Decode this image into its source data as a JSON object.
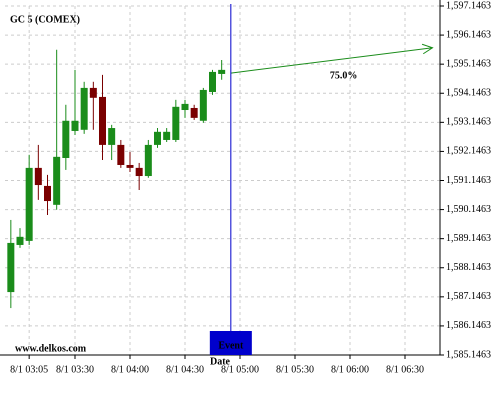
{
  "chart_data": {
    "type": "candlestick",
    "title": "GC 5 (COMEX)",
    "x_label": "Date",
    "watermark": "www.delkos.com",
    "x": [
      "8/1 02:55",
      "8/1 03:00",
      "8/1 03:05",
      "8/1 03:10",
      "8/1 03:15",
      "8/1 03:20",
      "8/1 03:25",
      "8/1 03:30",
      "8/1 03:35",
      "8/1 03:40",
      "8/1 03:45",
      "8/1 03:50",
      "8/1 03:55",
      "8/1 04:00",
      "8/1 04:05",
      "8/1 04:10",
      "8/1 04:15",
      "8/1 04:20",
      "8/1 04:25",
      "8/1 04:30",
      "8/1 04:35",
      "8/1 04:40",
      "8/1 04:45",
      "8/1 04:50"
    ],
    "open": [
      1587.31,
      1588.93,
      1589.07,
      1591.58,
      1590.96,
      1590.31,
      1591.92,
      1592.85,
      1592.89,
      1594.33,
      1594.02,
      1592.37,
      1592.37,
      1591.68,
      1591.58,
      1591.3,
      1592.37,
      1592.54,
      1592.54,
      1593.57,
      1593.64,
      1593.2,
      1594.19,
      1594.81
    ],
    "high": [
      1589.79,
      1589.51,
      1592.03,
      1592.37,
      1591.34,
      1595.64,
      1593.75,
      1594.95,
      1594.54,
      1594.54,
      1594.78,
      1593.06,
      1592.54,
      1592.13,
      1591.75,
      1592.54,
      1592.95,
      1592.95,
      1593.92,
      1593.92,
      1593.75,
      1594.33,
      1594.95,
      1595.29
    ],
    "low": [
      1586.76,
      1588.83,
      1588.93,
      1590.48,
      1589.96,
      1590.14,
      1591.51,
      1592.71,
      1592.75,
      1592.89,
      1591.85,
      1591.85,
      1591.58,
      1591.44,
      1590.82,
      1591.24,
      1592.27,
      1592.47,
      1592.47,
      1593.3,
      1593.23,
      1593.13,
      1594.09,
      1594.61
    ],
    "close": [
      1589.0,
      1589.21,
      1591.58,
      1590.99,
      1590.44,
      1591.96,
      1593.2,
      1593.2,
      1594.33,
      1593.99,
      1592.37,
      1592.95,
      1591.68,
      1591.58,
      1591.3,
      1592.37,
      1592.82,
      1592.82,
      1593.68,
      1593.78,
      1593.3,
      1594.26,
      1594.88,
      1594.95
    ],
    "up_color": "#1a8c1a",
    "down_color": "#7a0000",
    "ylim": [
      1585.1463,
      1597.1463
    ],
    "yticks": [
      {
        "value": 1585.1463,
        "label": "1,585.1463"
      },
      {
        "value": 1586.1463,
        "label": "1,586.1463"
      },
      {
        "value": 1587.1463,
        "label": "1,587.1463"
      },
      {
        "value": 1588.1463,
        "label": "1,588.1463"
      },
      {
        "value": 1589.1463,
        "label": "1,589.1463"
      },
      {
        "value": 1590.1463,
        "label": "1,590.1463"
      },
      {
        "value": 1591.1463,
        "label": "1,591.1463"
      },
      {
        "value": 1592.1463,
        "label": "1,592.1463"
      },
      {
        "value": 1593.1463,
        "label": "1,593.1463"
      },
      {
        "value": 1594.1463,
        "label": "1,594.1463"
      },
      {
        "value": 1595.1463,
        "label": "1,595.1463"
      },
      {
        "value": 1596.1463,
        "label": "1,596.1463"
      },
      {
        "value": 1597.1463,
        "label": "1,597.1463"
      }
    ],
    "xticks": [
      "8/1 03:05",
      "8/1 03:30",
      "8/1 04:00",
      "8/1 04:30",
      "8/1 05:00",
      "8/1 05:30",
      "8/1 06:00",
      "8/1 06:30"
    ],
    "grid": true,
    "event": {
      "x": "8/1 04:55",
      "label": "Event",
      "color": "#0000cc"
    },
    "forecast": {
      "x": [
        "8/1 04:55",
        "8/1 06:45"
      ],
      "values": [
        1594.84,
        1595.71
      ],
      "label": "75.0%",
      "color": "#1a8c1a"
    }
  }
}
